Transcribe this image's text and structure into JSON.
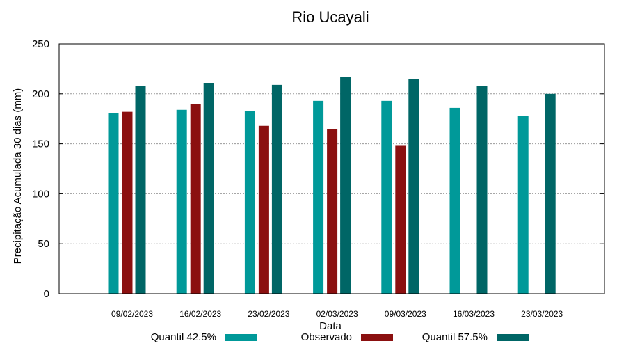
{
  "chart_data": {
    "type": "bar",
    "title": "Rio Ucayali",
    "xlabel": "Data",
    "ylabel": "Precipitação Acumulada 30 dias (mm)",
    "ylim": [
      0,
      250
    ],
    "yticks": [
      0,
      50,
      100,
      150,
      200,
      250
    ],
    "grid": true,
    "legend_position": "bottom",
    "categories": [
      "09/02/2023",
      "16/02/2023",
      "23/02/2023",
      "02/03/2023",
      "09/03/2023",
      "16/03/2023",
      "23/03/2023"
    ],
    "series": [
      {
        "name": "Quantil 42.5%",
        "color": "#009999",
        "values": [
          181,
          184,
          183,
          193,
          193,
          186,
          178
        ]
      },
      {
        "name": "Observado",
        "color": "#8b1010",
        "values": [
          182,
          190,
          168,
          165,
          148,
          null,
          null
        ]
      },
      {
        "name": "Quantil 57.5%",
        "color": "#006666",
        "values": [
          208,
          211,
          209,
          217,
          215,
          208,
          200
        ]
      }
    ]
  }
}
